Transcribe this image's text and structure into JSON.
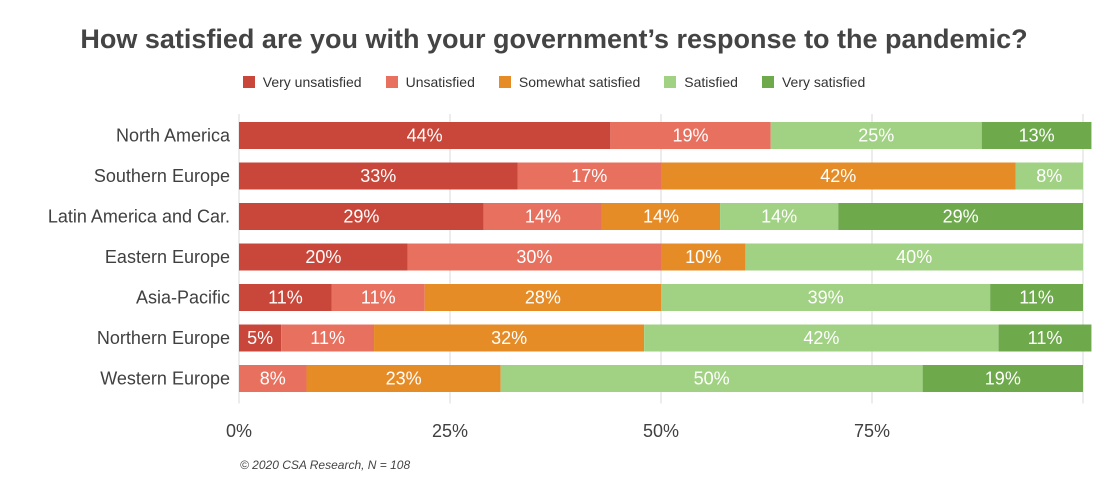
{
  "chart_data": {
    "type": "bar",
    "orientation": "horizontal",
    "stacked": true,
    "title": "How satisfied are you with your government’s response to the pandemic?",
    "categories": [
      "North America",
      "Southern Europe",
      "Latin America and Car.",
      "Eastern Europe",
      "Asia-Pacific",
      "Northern Europe",
      "Western Europe"
    ],
    "series": [
      {
        "name": "Very unsatisfied",
        "color": "#c9473a",
        "values": [
          44,
          33,
          29,
          20,
          11,
          5,
          0
        ],
        "labels": [
          "44%",
          "33%",
          "29%",
          "20%",
          "11%",
          "5%",
          ""
        ]
      },
      {
        "name": "Unsatisfied",
        "color": "#e8705f",
        "values": [
          19,
          17,
          14,
          30,
          11,
          11,
          8
        ],
        "labels": [
          "19%",
          "17%",
          "14%",
          "30%",
          "11%",
          "11%",
          "8%"
        ]
      },
      {
        "name": "Somewhat satisfied",
        "color": "#e68c27",
        "values": [
          0,
          42,
          14,
          10,
          28,
          32,
          23
        ],
        "labels": [
          "",
          "42%",
          "14%",
          "10%",
          "28%",
          "32%",
          "23%"
        ]
      },
      {
        "name": "Satisfied",
        "color": "#a1d183",
        "values": [
          25,
          8,
          14,
          40,
          39,
          42,
          50
        ],
        "labels": [
          "25%",
          "8%",
          "14%",
          "40%",
          "39%",
          "42%",
          "50%"
        ]
      },
      {
        "name": "Very satisfied",
        "color": "#6ea94c",
        "values": [
          13,
          0,
          29,
          0,
          11,
          11,
          19
        ],
        "labels": [
          "13%",
          "",
          "29%",
          "",
          "11%",
          "11%",
          "19%"
        ]
      }
    ],
    "x_ticks": [
      "0%",
      "25%",
      "50%",
      "75%"
    ],
    "xlim": [
      0,
      100
    ],
    "legend_position": "top",
    "grid": true
  },
  "footnote": "© 2020 CSA Research, N = 108"
}
